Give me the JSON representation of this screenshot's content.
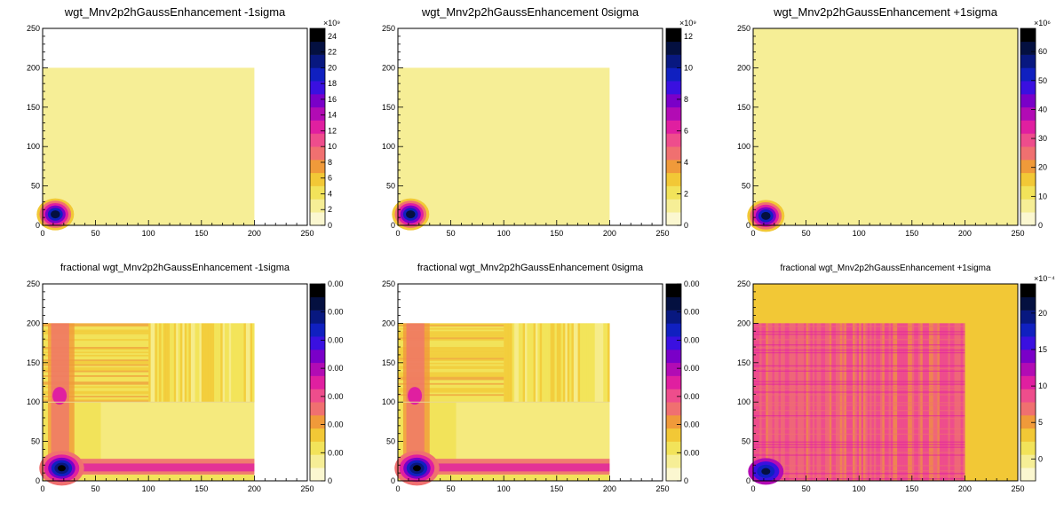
{
  "palette": [
    "#fbf7d0",
    "#f6ee96",
    "#f2e35a",
    "#f2c836",
    "#f09a3a",
    "#f07070",
    "#ee4d8c",
    "#e01fa0",
    "#b20bb4",
    "#7a00c8",
    "#3a10e0",
    "#1020c0",
    "#081880",
    "#041040",
    "#000000"
  ],
  "chart_data": [
    {
      "type": "heatmap",
      "title": "wgt_Mnv2p2hGaussEnhancement -1sigma",
      "x_ticks": [
        "0",
        "50",
        "100",
        "150",
        "200",
        "250"
      ],
      "y_ticks": [
        "0",
        "50",
        "100",
        "150",
        "200",
        "250"
      ],
      "xlim": [
        0,
        250
      ],
      "ylim": [
        0,
        250
      ],
      "filled_region": {
        "x": [
          0,
          200
        ],
        "y": [
          0,
          200
        ]
      },
      "peak": {
        "x": 12,
        "y": 14
      },
      "fill_level": 1,
      "colorbar_ticks": [
        "0",
        "2",
        "4",
        "6",
        "8",
        "10",
        "12",
        "14",
        "16",
        "18",
        "20",
        "22",
        "24"
      ],
      "colorbar_exponent": "×10⁹",
      "colorbar_max": 25
    },
    {
      "type": "heatmap",
      "title": "wgt_Mnv2p2hGaussEnhancement 0sigma",
      "x_ticks": [
        "0",
        "50",
        "100",
        "150",
        "200",
        "250"
      ],
      "y_ticks": [
        "0",
        "50",
        "100",
        "150",
        "200",
        "250"
      ],
      "xlim": [
        0,
        250
      ],
      "ylim": [
        0,
        250
      ],
      "filled_region": {
        "x": [
          0,
          200
        ],
        "y": [
          0,
          200
        ]
      },
      "peak": {
        "x": 12,
        "y": 14
      },
      "fill_level": 1,
      "colorbar_ticks": [
        "0",
        "2",
        "4",
        "6",
        "8",
        "10",
        "12"
      ],
      "colorbar_exponent": "×10⁹",
      "colorbar_max": 12.5
    },
    {
      "type": "heatmap",
      "title": "wgt_Mnv2p2hGaussEnhancement +1sigma",
      "x_ticks": [
        "0",
        "50",
        "100",
        "150",
        "200",
        "250"
      ],
      "y_ticks": [
        "0",
        "50",
        "100",
        "150",
        "200",
        "250"
      ],
      "xlim": [
        0,
        250
      ],
      "ylim": [
        0,
        250
      ],
      "filled_region": {
        "x": [
          0,
          250
        ],
        "y": [
          0,
          250
        ]
      },
      "peak": {
        "x": 12,
        "y": 12
      },
      "fill_level": 1,
      "colorbar_ticks": [
        "0",
        "10",
        "20",
        "30",
        "40",
        "50",
        "60"
      ],
      "colorbar_exponent": "×10⁶",
      "colorbar_max": 68
    },
    {
      "type": "heatmap",
      "title": "fractional wgt_Mnv2p2hGaussEnhancement -1sigma",
      "x_ticks": [
        "0",
        "50",
        "100",
        "150",
        "200",
        "250"
      ],
      "y_ticks": [
        "0",
        "50",
        "100",
        "150",
        "200",
        "250"
      ],
      "xlim": [
        0,
        250
      ],
      "ylim": [
        0,
        250
      ],
      "filled_region": {
        "x": [
          0,
          200
        ],
        "y": [
          0,
          200
        ]
      },
      "peak": {
        "x": 18,
        "y": 16
      },
      "colorbar_ticks": [
        "0",
        "0.00",
        "0.00",
        "0.00",
        "0.00",
        "0.00",
        "0.00",
        "0.00"
      ],
      "colorbar_exponent": "",
      "colorbar_max": 7
    },
    {
      "type": "heatmap",
      "title": "fractional wgt_Mnv2p2hGaussEnhancement 0sigma",
      "x_ticks": [
        "0",
        "50",
        "100",
        "150",
        "200",
        "250"
      ],
      "y_ticks": [
        "0",
        "50",
        "100",
        "150",
        "200",
        "250"
      ],
      "xlim": [
        0,
        250
      ],
      "ylim": [
        0,
        250
      ],
      "filled_region": {
        "x": [
          0,
          200
        ],
        "y": [
          0,
          200
        ]
      },
      "peak": {
        "x": 18,
        "y": 16
      },
      "colorbar_ticks": [
        "0",
        "0.00",
        "0.00",
        "0.00",
        "0.00",
        "0.00",
        "0.00",
        "0.00"
      ],
      "colorbar_exponent": "",
      "colorbar_max": 7
    },
    {
      "type": "heatmap",
      "title": "fractional wgt_Mnv2p2hGaussEnhancement +1sigma",
      "x_ticks": [
        "0",
        "50",
        "100",
        "150",
        "200",
        "250"
      ],
      "y_ticks": [
        "0",
        "50",
        "100",
        "150",
        "200",
        "250"
      ],
      "xlim": [
        0,
        250
      ],
      "ylim": [
        0,
        250
      ],
      "filled_region": {
        "x": [
          0,
          250
        ],
        "y": [
          0,
          250
        ]
      },
      "inner_region": {
        "x": [
          0,
          200
        ],
        "y": [
          0,
          200
        ]
      },
      "peak": {
        "x": 12,
        "y": 12
      },
      "colorbar_ticks": [
        "0",
        "5",
        "10",
        "15",
        "20"
      ],
      "colorbar_exponent": "×10⁻⁴",
      "colorbar_min": -3,
      "colorbar_max": 24
    }
  ]
}
